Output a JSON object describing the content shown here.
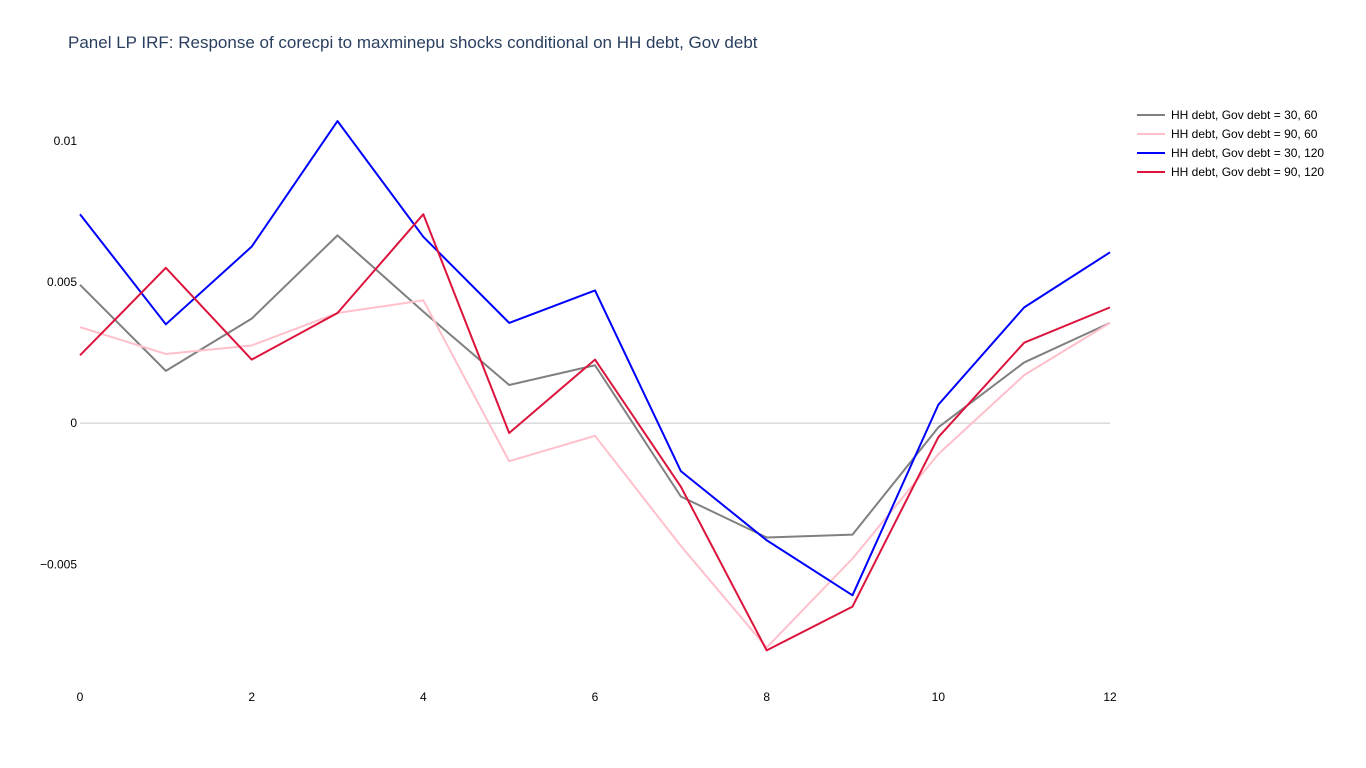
{
  "chart_data": {
    "type": "line",
    "title": "Panel LP IRF: Response of corecpi to maxminepu shocks conditional on HH debt, Gov debt",
    "xlabel": "",
    "ylabel": "",
    "x": [
      0,
      1,
      2,
      3,
      4,
      5,
      6,
      7,
      8,
      9,
      10,
      11,
      12
    ],
    "xlim": [
      0,
      12
    ],
    "ylim": [
      -0.0091,
      0.0118
    ],
    "x_ticks": [
      0,
      2,
      4,
      6,
      8,
      10,
      12
    ],
    "x_tick_labels": [
      "0",
      "2",
      "4",
      "6",
      "8",
      "10",
      "12"
    ],
    "y_ticks": [
      -0.005,
      0,
      0.005,
      0.01
    ],
    "y_tick_labels": [
      "−0.005",
      "0",
      "0.005",
      "0.01"
    ],
    "grid": false,
    "zero_line": true,
    "legend_position": "top-right",
    "series": [
      {
        "name": "HH debt, Gov debt = 30, 60",
        "color": "#808080",
        "values": [
          0.0049,
          0.00185,
          0.0037,
          0.00665,
          0.00395,
          0.00135,
          0.00205,
          -0.0026,
          -0.00405,
          -0.00395,
          -0.00015,
          0.00215,
          0.00355
        ]
      },
      {
        "name": "HH debt, Gov debt = 90, 60",
        "color": "#ffc0cb",
        "values": [
          0.0034,
          0.00245,
          0.00275,
          0.0039,
          0.00435,
          -0.00135,
          -0.00045,
          -0.00435,
          -0.00795,
          -0.0048,
          -0.0011,
          0.0017,
          0.00355
        ]
      },
      {
        "name": "HH debt, Gov debt = 30, 120",
        "color": "#0000ff",
        "values": [
          0.0074,
          0.0035,
          0.00625,
          0.0107,
          0.0066,
          0.00355,
          0.0047,
          -0.0017,
          -0.00415,
          -0.0061,
          0.00065,
          0.0041,
          0.00605
        ]
      },
      {
        "name": "HH debt, Gov debt = 90, 120",
        "color": "#dc143c",
        "values": [
          0.0024,
          0.0055,
          0.00225,
          0.0039,
          0.0074,
          -0.00035,
          0.00225,
          -0.00225,
          -0.00805,
          -0.0065,
          -0.0005,
          0.00285,
          0.0041
        ]
      }
    ]
  }
}
